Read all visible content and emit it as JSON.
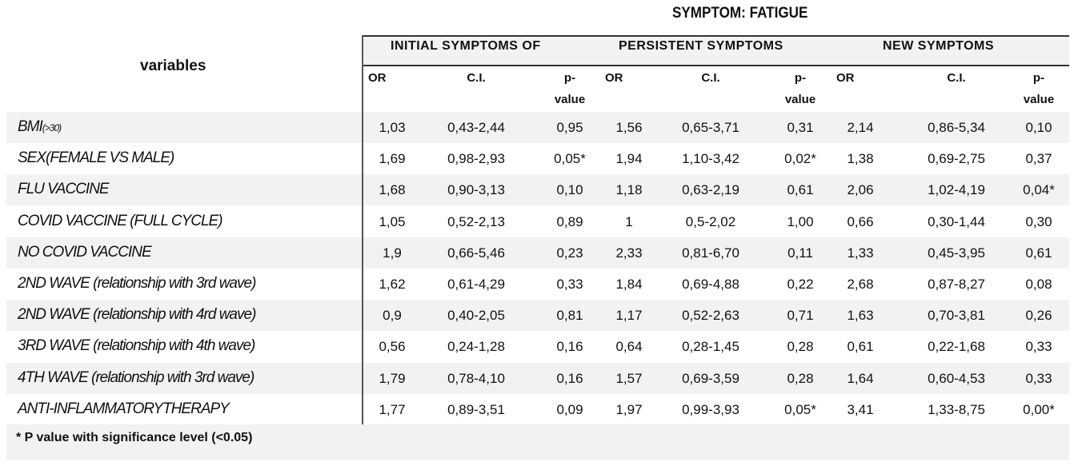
{
  "title": "SYMPTOM: FATIGUE",
  "variables_header": "variables",
  "groups": [
    "INITIAL SYMPTOMS OF",
    "PERSISTENT SYMPTOMS",
    "NEW SYMPTOMS"
  ],
  "subheaders": [
    "OR",
    "C.I.",
    "p-\nvalue"
  ],
  "rows": [
    {
      "label": "BMI",
      "sub": "(>30)",
      "values": [
        "1,03",
        "0,43-2,44",
        "0,95",
        "1,56",
        "0,65-3,71",
        "0,31",
        "2,14",
        "0,86-5,34",
        "0,10"
      ]
    },
    {
      "label": "SEX(FEMALE VS MALE)",
      "values": [
        "1,69",
        "0,98-2,93",
        "0,05*",
        "1,94",
        "1,10-3,42",
        "0,02*",
        "1,38",
        "0,69-2,75",
        "0,37"
      ]
    },
    {
      "label": "FLU VACCINE",
      "values": [
        "1,68",
        "0,90-3,13",
        "0,10",
        "1,18",
        "0,63-2,19",
        "0,61",
        "2,06",
        "1,02-4,19",
        "0,04*"
      ]
    },
    {
      "label": "COVID VACCINE (FULL CYCLE)",
      "values": [
        "1,05",
        "0,52-2,13",
        "0,89",
        "1",
        "0,5-2,02",
        "1,00",
        "0,66",
        "0,30-1,44",
        "0,30"
      ]
    },
    {
      "label": "NO COVID VACCINE",
      "values": [
        "1,9",
        "0,66-5,46",
        "0,23",
        "2,33",
        "0,81-6,70",
        "0,11",
        "1,33",
        "0,45-3,95",
        "0,61"
      ]
    },
    {
      "label": "2ND WAVE (relationship with 3rd wave)",
      "values": [
        "1,62",
        "0,61-4,29",
        "0,33",
        "1,84",
        "0,69-4,88",
        "0,22",
        "2,68",
        "0,87-8,27",
        "0,08"
      ]
    },
    {
      "label": "2ND WAVE (relationship with 4rd wave)",
      "values": [
        "0,9",
        "0,40-2,05",
        "0,81",
        "1,17",
        "0,52-2,63",
        "0,71",
        "1,63",
        "0,70-3,81",
        "0,26"
      ]
    },
    {
      "label": "3RD WAVE (relationship with 4th wave)",
      "values": [
        "0,56",
        "0,24-1,28",
        "0,16",
        "0,64",
        "0,28-1,45",
        "0,28",
        "0,61",
        "0,22-1,68",
        "0,33"
      ]
    },
    {
      "label": "4TH WAVE (relationship with 3rd wave)",
      "values": [
        "1,79",
        "0,78-4,10",
        "0,16",
        "1,57",
        "0,69-3,59",
        "0,28",
        "1,64",
        "0,60-4,53",
        "0,33"
      ]
    },
    {
      "label": "ANTI-INFLAMMATORYTHERAPY",
      "values": [
        "1,77",
        "0,89-3,51",
        "0,09",
        "1,97",
        "0,99-3,93",
        "0,05*",
        "3,41",
        "1,33-8,75",
        "0,00*"
      ]
    }
  ],
  "footnote": "*  P value with significance level (<0.05)"
}
